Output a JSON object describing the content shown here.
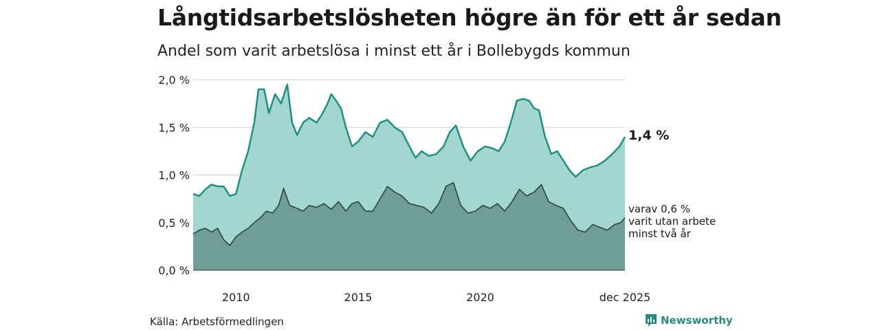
{
  "title": "Långtidsarbetslösheten högre än för ett år sedan",
  "subtitle": "Andel som varit arbetslösa i minst ett år i Bollebygds kommun",
  "source": "Källa: Arbetsförmedlingen",
  "brand": "Newsworthy",
  "label_latest": "1,4 %",
  "label_sub": [
    "varav 0,6 %",
    "varit utan arbete",
    "minst två år"
  ],
  "colors": {
    "area_main": "#a2d6d0",
    "line_main": "#1f9080",
    "area_sub": "#6e9e96",
    "line_sub": "#2b4440",
    "grid": "#d0d0d0",
    "brand": "#2a8a7d"
  },
  "chart_data": {
    "type": "area",
    "x_start": "2008-04",
    "x_end": "2025-12",
    "ylim": [
      0,
      2.0
    ],
    "yticks": [
      0,
      0.5,
      1.0,
      1.5,
      2.0
    ],
    "ytick_labels": [
      "0,0 %",
      "0,5 %",
      "1,0 %",
      "1,5 %",
      "2,0 %"
    ],
    "xticks": [
      {
        "at": 2010.0,
        "label": "2010"
      },
      {
        "at": 2015.0,
        "label": "2015"
      },
      {
        "at": 2020.0,
        "label": "2020"
      },
      {
        "at": 2025.92,
        "label": "dec 2025"
      }
    ],
    "series": [
      {
        "name": "minst ett år",
        "points": [
          [
            2008.25,
            0.8
          ],
          [
            2008.5,
            0.78
          ],
          [
            2008.75,
            0.85
          ],
          [
            2009.0,
            0.9
          ],
          [
            2009.25,
            0.88
          ],
          [
            2009.5,
            0.88
          ],
          [
            2009.75,
            0.78
          ],
          [
            2010.0,
            0.8
          ],
          [
            2010.25,
            1.05
          ],
          [
            2010.5,
            1.25
          ],
          [
            2010.75,
            1.55
          ],
          [
            2010.92,
            1.9
          ],
          [
            2011.15,
            1.9
          ],
          [
            2011.35,
            1.65
          ],
          [
            2011.6,
            1.85
          ],
          [
            2011.85,
            1.75
          ],
          [
            2012.1,
            1.95
          ],
          [
            2012.3,
            1.55
          ],
          [
            2012.5,
            1.42
          ],
          [
            2012.75,
            1.55
          ],
          [
            2013.0,
            1.6
          ],
          [
            2013.3,
            1.55
          ],
          [
            2013.55,
            1.65
          ],
          [
            2013.75,
            1.75
          ],
          [
            2013.9,
            1.85
          ],
          [
            2014.1,
            1.78
          ],
          [
            2014.3,
            1.7
          ],
          [
            2014.5,
            1.5
          ],
          [
            2014.75,
            1.3
          ],
          [
            2015.0,
            1.35
          ],
          [
            2015.3,
            1.45
          ],
          [
            2015.6,
            1.4
          ],
          [
            2015.9,
            1.55
          ],
          [
            2016.2,
            1.58
          ],
          [
            2016.5,
            1.5
          ],
          [
            2016.8,
            1.45
          ],
          [
            2017.1,
            1.3
          ],
          [
            2017.35,
            1.18
          ],
          [
            2017.6,
            1.25
          ],
          [
            2017.9,
            1.2
          ],
          [
            2018.2,
            1.22
          ],
          [
            2018.5,
            1.3
          ],
          [
            2018.75,
            1.45
          ],
          [
            2019.0,
            1.52
          ],
          [
            2019.3,
            1.3
          ],
          [
            2019.6,
            1.15
          ],
          [
            2019.9,
            1.25
          ],
          [
            2020.2,
            1.3
          ],
          [
            2020.5,
            1.28
          ],
          [
            2020.75,
            1.25
          ],
          [
            2021.0,
            1.35
          ],
          [
            2021.25,
            1.55
          ],
          [
            2021.5,
            1.78
          ],
          [
            2021.75,
            1.8
          ],
          [
            2022.0,
            1.78
          ],
          [
            2022.2,
            1.7
          ],
          [
            2022.4,
            1.68
          ],
          [
            2022.65,
            1.4
          ],
          [
            2022.9,
            1.22
          ],
          [
            2023.15,
            1.25
          ],
          [
            2023.4,
            1.15
          ],
          [
            2023.65,
            1.05
          ],
          [
            2023.9,
            0.98
          ],
          [
            2024.2,
            1.05
          ],
          [
            2024.5,
            1.08
          ],
          [
            2024.8,
            1.1
          ],
          [
            2025.1,
            1.15
          ],
          [
            2025.4,
            1.22
          ],
          [
            2025.7,
            1.3
          ],
          [
            2025.92,
            1.4
          ]
        ]
      },
      {
        "name": "minst två år",
        "points": [
          [
            2008.25,
            0.38
          ],
          [
            2008.5,
            0.42
          ],
          [
            2008.75,
            0.44
          ],
          [
            2009.0,
            0.4
          ],
          [
            2009.25,
            0.44
          ],
          [
            2009.5,
            0.32
          ],
          [
            2009.75,
            0.26
          ],
          [
            2010.0,
            0.35
          ],
          [
            2010.25,
            0.4
          ],
          [
            2010.5,
            0.44
          ],
          [
            2010.75,
            0.5
          ],
          [
            2011.0,
            0.55
          ],
          [
            2011.25,
            0.62
          ],
          [
            2011.5,
            0.6
          ],
          [
            2011.75,
            0.68
          ],
          [
            2011.95,
            0.86
          ],
          [
            2012.2,
            0.68
          ],
          [
            2012.5,
            0.65
          ],
          [
            2012.75,
            0.62
          ],
          [
            2013.0,
            0.68
          ],
          [
            2013.3,
            0.66
          ],
          [
            2013.6,
            0.7
          ],
          [
            2013.9,
            0.64
          ],
          [
            2014.2,
            0.72
          ],
          [
            2014.5,
            0.62
          ],
          [
            2014.75,
            0.7
          ],
          [
            2015.0,
            0.72
          ],
          [
            2015.3,
            0.62
          ],
          [
            2015.6,
            0.62
          ],
          [
            2015.9,
            0.75
          ],
          [
            2016.2,
            0.88
          ],
          [
            2016.5,
            0.82
          ],
          [
            2016.8,
            0.78
          ],
          [
            2017.1,
            0.7
          ],
          [
            2017.4,
            0.68
          ],
          [
            2017.7,
            0.66
          ],
          [
            2018.0,
            0.6
          ],
          [
            2018.3,
            0.7
          ],
          [
            2018.6,
            0.88
          ],
          [
            2018.9,
            0.92
          ],
          [
            2019.2,
            0.68
          ],
          [
            2019.5,
            0.6
          ],
          [
            2019.8,
            0.62
          ],
          [
            2020.1,
            0.68
          ],
          [
            2020.4,
            0.65
          ],
          [
            2020.7,
            0.7
          ],
          [
            2021.0,
            0.62
          ],
          [
            2021.3,
            0.72
          ],
          [
            2021.6,
            0.85
          ],
          [
            2021.9,
            0.78
          ],
          [
            2022.2,
            0.82
          ],
          [
            2022.5,
            0.9
          ],
          [
            2022.8,
            0.72
          ],
          [
            2023.1,
            0.68
          ],
          [
            2023.4,
            0.65
          ],
          [
            2023.7,
            0.52
          ],
          [
            2024.0,
            0.42
          ],
          [
            2024.3,
            0.4
          ],
          [
            2024.6,
            0.48
          ],
          [
            2024.9,
            0.45
          ],
          [
            2025.2,
            0.42
          ],
          [
            2025.5,
            0.48
          ],
          [
            2025.75,
            0.5
          ],
          [
            2025.92,
            0.55
          ]
        ]
      }
    ]
  }
}
